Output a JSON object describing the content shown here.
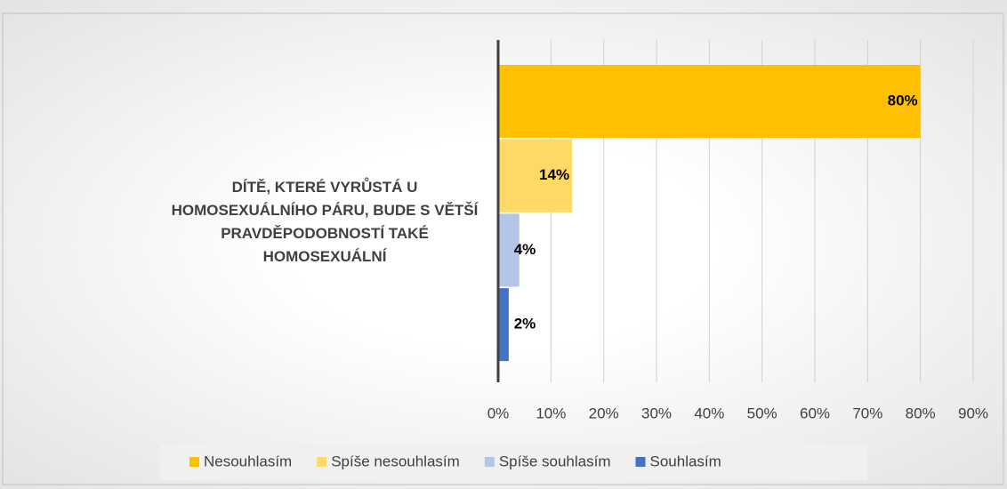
{
  "chart_data": {
    "type": "bar",
    "orientation": "horizontal",
    "categories": [
      "DÍTĚ, KTERÉ VYRŮSTÁ U HOMOSEXUÁLNÍHO PÁRU, BUDE S VĚTŠÍ PRAVDĚPODOBNOSTÍ TAKÉ HOMOSEXUÁLNÍ"
    ],
    "series": [
      {
        "name": "Nesouhlasím",
        "color": "#ffc000",
        "values": [
          80
        ],
        "value_labels": [
          "80%"
        ]
      },
      {
        "name": "Spíše nesouhlasím",
        "color": "#ffd966",
        "values": [
          14
        ],
        "value_labels": [
          "14%"
        ]
      },
      {
        "name": "Spíše souhlasím",
        "color": "#b4c6e7",
        "values": [
          4
        ],
        "value_labels": [
          "4%"
        ]
      },
      {
        "name": "Souhlasím",
        "color": "#4472c4",
        "values": [
          2
        ],
        "value_labels": [
          "2%"
        ]
      }
    ],
    "xlim": [
      0,
      90
    ],
    "xticks": [
      {
        "value": 0,
        "label": "0%"
      },
      {
        "value": 10,
        "label": "10%"
      },
      {
        "value": 20,
        "label": "20%"
      },
      {
        "value": 30,
        "label": "30%"
      },
      {
        "value": 40,
        "label": "40%"
      },
      {
        "value": 50,
        "label": "50%"
      },
      {
        "value": 60,
        "label": "60%"
      },
      {
        "value": 70,
        "label": "70%"
      },
      {
        "value": 80,
        "label": "80%"
      },
      {
        "value": 90,
        "label": "90%"
      }
    ],
    "grid": true,
    "legend": "bottom"
  }
}
